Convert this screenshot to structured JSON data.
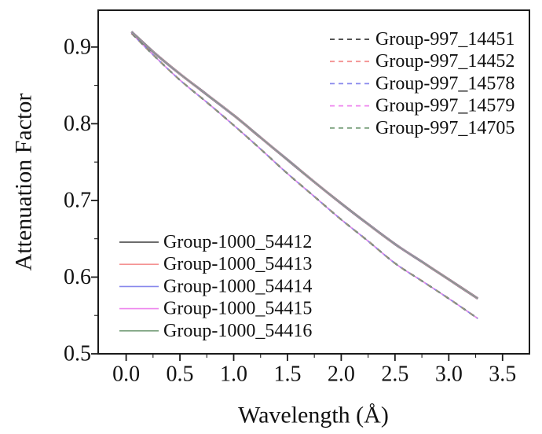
{
  "figure": {
    "background": "#ffffff",
    "frame_color": "#1a1a1a"
  },
  "chart_data": {
    "type": "line",
    "title": "",
    "xlabel": "Wavelength (Å)",
    "ylabel": "Attenuation Factor",
    "xlim": [
      -0.26,
      3.75
    ],
    "ylim": [
      0.5,
      0.948
    ],
    "grid": false,
    "frame": true,
    "xticks": [
      0.0,
      0.5,
      1.0,
      1.5,
      2.0,
      2.5,
      3.0,
      3.5
    ],
    "xtick_labels": [
      "0.0",
      "0.5",
      "1.0",
      "1.5",
      "2.0",
      "2.5",
      "3.0",
      "3.5"
    ],
    "x_minor_ticks": [
      0.25,
      0.75,
      1.25,
      1.75,
      2.25,
      2.75,
      3.25
    ],
    "yticks": [
      0.5,
      0.6,
      0.7,
      0.8,
      0.9
    ],
    "ytick_labels": [
      "0.5",
      "0.6",
      "0.7",
      "0.8",
      "0.9"
    ],
    "y_minor_ticks": [
      0.55,
      0.65,
      0.75,
      0.85
    ],
    "x": [
      0.05,
      0.25,
      0.5,
      0.75,
      1.0,
      1.25,
      1.5,
      1.75,
      2.0,
      2.25,
      2.5,
      2.75,
      3.0,
      3.27
    ],
    "series": [
      {
        "name": "Group-997_14451",
        "group": "Group-997",
        "style": "dashed",
        "color": "#3d3d3d",
        "values": [
          0.918,
          0.89,
          0.857,
          0.828,
          0.798,
          0.767,
          0.735,
          0.705,
          0.675,
          0.647,
          0.618,
          0.595,
          0.572,
          0.546
        ]
      },
      {
        "name": "Group-997_14452",
        "group": "Group-997",
        "style": "dashed",
        "color": "#f49292",
        "values": [
          0.918,
          0.89,
          0.857,
          0.828,
          0.798,
          0.767,
          0.735,
          0.705,
          0.675,
          0.647,
          0.618,
          0.595,
          0.572,
          0.546
        ]
      },
      {
        "name": "Group-997_14578",
        "group": "Group-997",
        "style": "dashed",
        "color": "#8787ec",
        "values": [
          0.918,
          0.89,
          0.857,
          0.828,
          0.798,
          0.767,
          0.735,
          0.705,
          0.675,
          0.647,
          0.618,
          0.595,
          0.572,
          0.546
        ]
      },
      {
        "name": "Group-997_14579",
        "group": "Group-997",
        "style": "dashed",
        "color": "#ee85ee",
        "values": [
          0.918,
          0.89,
          0.857,
          0.828,
          0.798,
          0.767,
          0.735,
          0.705,
          0.675,
          0.647,
          0.618,
          0.595,
          0.572,
          0.546
        ]
      },
      {
        "name": "Group-997_14705",
        "group": "Group-997",
        "style": "dashed",
        "color": "#79a07c",
        "values": [
          0.918,
          0.89,
          0.857,
          0.828,
          0.798,
          0.767,
          0.735,
          0.705,
          0.675,
          0.647,
          0.618,
          0.595,
          0.572,
          0.546
        ]
      },
      {
        "name": "Group-1000_54412",
        "group": "Group-1000",
        "style": "solid",
        "color": "#3d3d3d",
        "values": [
          0.92,
          0.894,
          0.865,
          0.838,
          0.811,
          0.782,
          0.753,
          0.724,
          0.696,
          0.669,
          0.643,
          0.62,
          0.597,
          0.572
        ]
      },
      {
        "name": "Group-1000_54413",
        "group": "Group-1000",
        "style": "solid",
        "color": "#f49292",
        "values": [
          0.92,
          0.894,
          0.865,
          0.838,
          0.811,
          0.782,
          0.753,
          0.724,
          0.696,
          0.669,
          0.643,
          0.62,
          0.597,
          0.572
        ]
      },
      {
        "name": "Group-1000_54414",
        "group": "Group-1000",
        "style": "solid",
        "color": "#8787ec",
        "values": [
          0.92,
          0.894,
          0.865,
          0.838,
          0.811,
          0.782,
          0.753,
          0.724,
          0.696,
          0.669,
          0.643,
          0.62,
          0.597,
          0.572
        ]
      },
      {
        "name": "Group-1000_54415",
        "group": "Group-1000",
        "style": "solid",
        "color": "#ee85ee",
        "values": [
          0.92,
          0.894,
          0.865,
          0.838,
          0.811,
          0.782,
          0.753,
          0.724,
          0.696,
          0.669,
          0.643,
          0.62,
          0.597,
          0.572
        ]
      },
      {
        "name": "Group-1000_54416",
        "group": "Group-1000",
        "style": "solid",
        "color": "#79a07c",
        "values": [
          0.92,
          0.894,
          0.865,
          0.838,
          0.811,
          0.782,
          0.753,
          0.724,
          0.696,
          0.669,
          0.643,
          0.62,
          0.597,
          0.572
        ]
      }
    ],
    "legends": [
      {
        "id": "legend-group-997",
        "position": "upper-right",
        "style": "dashed",
        "entries": [
          "Group-997_14451",
          "Group-997_14452",
          "Group-997_14578",
          "Group-997_14579",
          "Group-997_14705"
        ]
      },
      {
        "id": "legend-group-1000",
        "position": "lower-left",
        "style": "solid",
        "entries": [
          "Group-1000_54412",
          "Group-1000_54413",
          "Group-1000_54414",
          "Group-1000_54415",
          "Group-1000_54416"
        ]
      }
    ]
  }
}
